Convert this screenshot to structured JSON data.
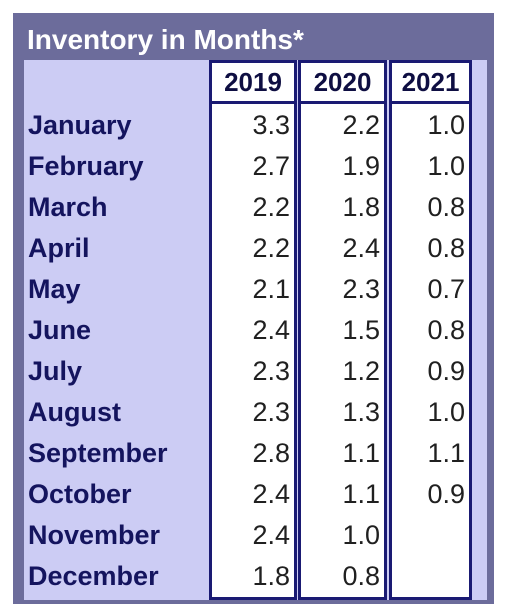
{
  "title": "Inventory in Months*",
  "chart_data": {
    "type": "table",
    "title": "Inventory in Months*",
    "columns": [
      "2019",
      "2020",
      "2021"
    ],
    "rows": [
      {
        "month": "January",
        "values": [
          "3.3",
          "2.2",
          "1.0"
        ]
      },
      {
        "month": "February",
        "values": [
          "2.7",
          "1.9",
          "1.0"
        ]
      },
      {
        "month": "March",
        "values": [
          "2.2",
          "1.8",
          "0.8"
        ]
      },
      {
        "month": "April",
        "values": [
          "2.2",
          "2.4",
          "0.8"
        ]
      },
      {
        "month": "May",
        "values": [
          "2.1",
          "2.3",
          "0.7"
        ]
      },
      {
        "month": "June",
        "values": [
          "2.4",
          "1.5",
          "0.8"
        ]
      },
      {
        "month": "July",
        "values": [
          "2.3",
          "1.2",
          "0.9"
        ]
      },
      {
        "month": "August",
        "values": [
          "2.3",
          "1.3",
          "1.0"
        ]
      },
      {
        "month": "September",
        "values": [
          "2.8",
          "1.1",
          "1.1"
        ]
      },
      {
        "month": "October",
        "values": [
          "2.4",
          "1.1",
          "0.9"
        ]
      },
      {
        "month": "November",
        "values": [
          "2.4",
          "1.0",
          ""
        ]
      },
      {
        "month": "December",
        "values": [
          "1.8",
          "0.8",
          ""
        ]
      }
    ]
  },
  "colors": {
    "frame": "#6c6c9b",
    "panel": "#ccccf4",
    "border": "#1a1a73",
    "label": "#14145e"
  }
}
